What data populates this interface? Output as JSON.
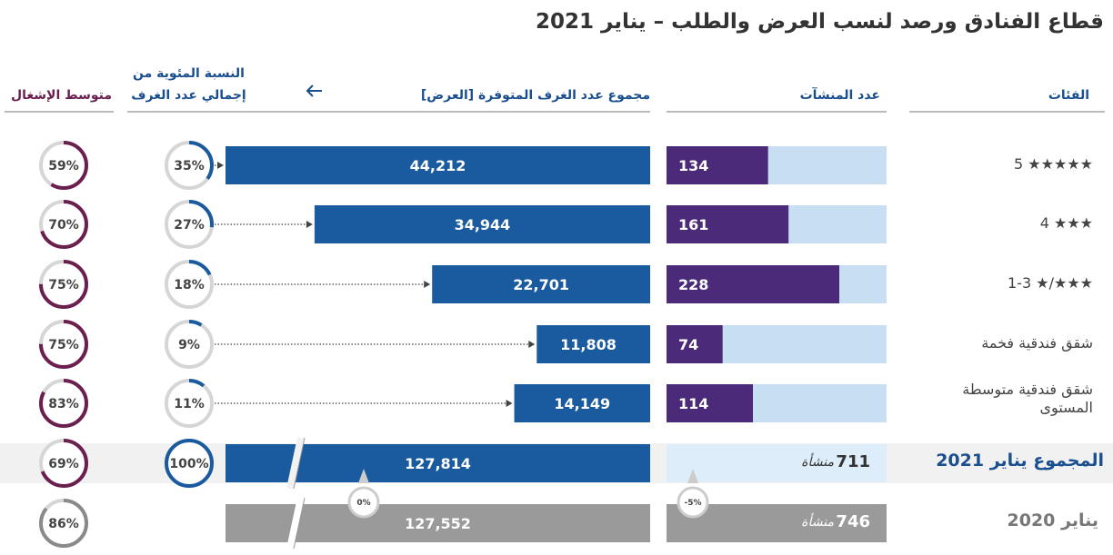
{
  "header": {
    "title": "قطاع الفنادق ورصد لنسب العرض والطلب – يناير 2021"
  },
  "columns": {
    "category": "الفئات",
    "establishments": "عدد المنشآت",
    "rooms": "مجموع عدد الغرف المتوفرة [العرض]",
    "share": "النسبة المئوية من إجمالي عدد الغرف",
    "occupancy": "متوسط الإشغال"
  },
  "rows": [
    {
      "label": "5 ★★★★★",
      "establishments": 134,
      "rooms": {
        "value": 44212,
        "label": "44,212"
      },
      "share": {
        "value": 35,
        "label": "35%"
      },
      "occupancy": {
        "value": 59,
        "label": "59%"
      }
    },
    {
      "label": "4 ★★★",
      "establishments": 161,
      "rooms": {
        "value": 34944,
        "label": "34,944"
      },
      "share": {
        "value": 27,
        "label": "27%"
      },
      "occupancy": {
        "value": 70,
        "label": "70%"
      }
    },
    {
      "label": "1-3 ★/★★★",
      "establishments": 228,
      "rooms": {
        "value": 22701,
        "label": "22,701"
      },
      "share": {
        "value": 18,
        "label": "18%"
      },
      "occupancy": {
        "value": 75,
        "label": "75%"
      }
    },
    {
      "label": "شقق فندقية فخمة",
      "establishments": 74,
      "rooms": {
        "value": 11808,
        "label": "11,808"
      },
      "share": {
        "value": 9,
        "label": "9%"
      },
      "occupancy": {
        "value": 75,
        "label": "75%"
      }
    },
    {
      "label": "شقق فندقية متوسطة المستوى",
      "establishments": 114,
      "rooms": {
        "value": 14149,
        "label": "14,149"
      },
      "share": {
        "value": 11,
        "label": "11%"
      },
      "occupancy": {
        "value": 83,
        "label": "83%"
      }
    }
  ],
  "total": {
    "label": "المجموع يناير 2021",
    "establishments": 711,
    "unit": "منشأة",
    "rooms": {
      "value": 127814,
      "label": "127,814"
    },
    "share": {
      "value": 100,
      "label": "100%"
    },
    "occupancy": {
      "value": 69,
      "label": "69%"
    }
  },
  "previous": {
    "label": "يناير 2020",
    "establishments": 746,
    "unit": "منشأة",
    "rooms": {
      "value": 127552,
      "label": "127,552"
    },
    "occupancy": {
      "value": 86,
      "label": "86%"
    },
    "rooms_change": {
      "value": 0,
      "label": "0%"
    },
    "establishments_change": {
      "value": -5,
      "label": "-5%"
    }
  }
}
